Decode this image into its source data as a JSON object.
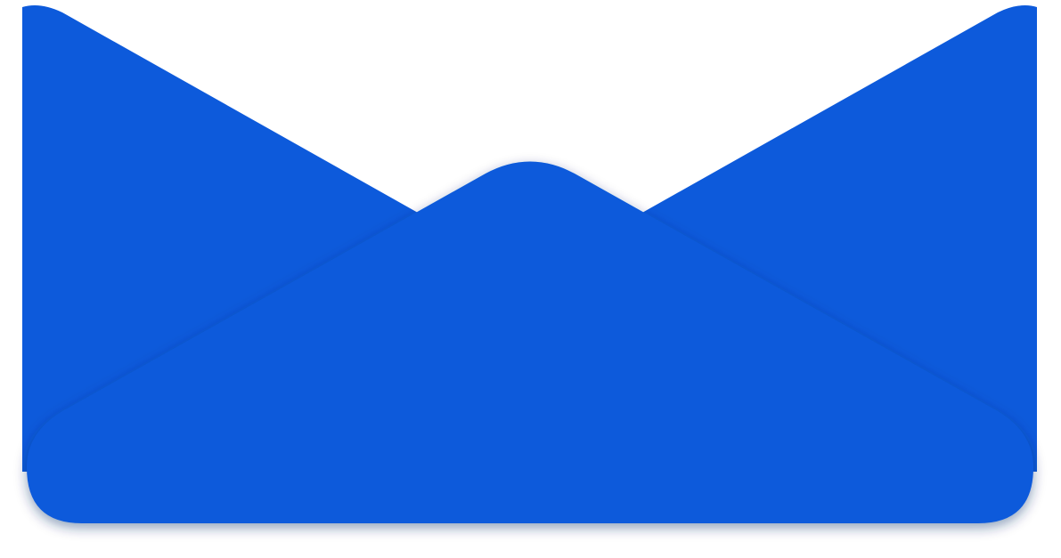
{
  "envelope": {
    "fill_color": "#0d5adb",
    "shadow_color": "#0a2a66",
    "background_color": "#ffffff"
  }
}
